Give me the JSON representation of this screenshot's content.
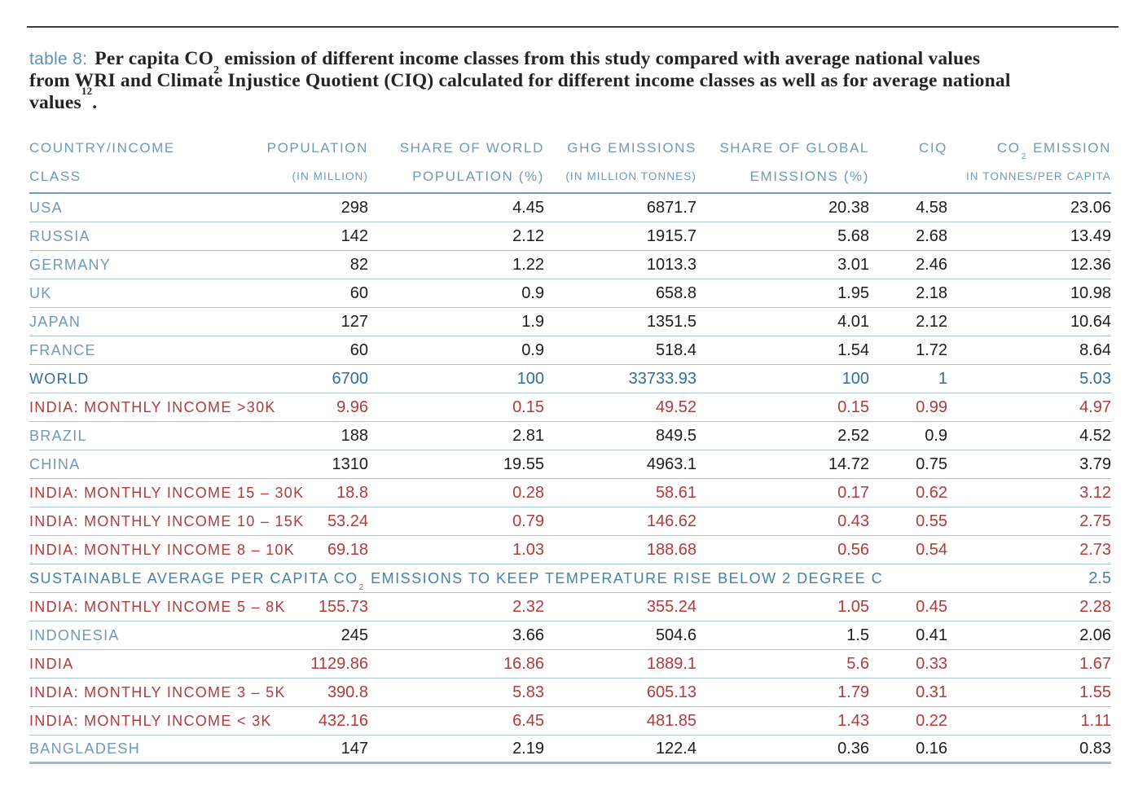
{
  "caption": {
    "label": "table 8:",
    "line1_before_sub": "Per capita CO",
    "line1_sub": "2",
    "line1_after_sub": " emission of different income classes from this study compared with average national values",
    "line2": "from WRI and Climate Injustice Quotient (CIQ) calculated for different income classes as well as for average national",
    "line3_word": "values",
    "line3_sup": "12",
    "line3_period": "."
  },
  "table": {
    "columns": [
      {
        "line1": "COUNTRY/INCOME",
        "line2": "CLASS"
      },
      {
        "line1": "POPULATION",
        "line2": "(IN MILLION)"
      },
      {
        "line1": "SHARE OF WORLD",
        "line2": "POPULATION (%)"
      },
      {
        "line1": "GHG EMISSIONS",
        "line2": "(IN MILLION TONNES)"
      },
      {
        "line1": "SHARE OF GLOBAL",
        "line2": "EMISSIONS (%)"
      },
      {
        "line1": "CIQ",
        "line2": ""
      },
      {
        "line1_before_sub": "CO",
        "line1_sub": "2",
        "line1_after_sub": " EMISSION",
        "line2": "IN TONNES/PER CAPITA"
      }
    ],
    "rows": [
      {
        "label": "USA",
        "values": [
          "298",
          "4.45",
          "6871.7",
          "20.38",
          "4.58",
          "23.06"
        ],
        "style": "country"
      },
      {
        "label": "RUSSIA",
        "values": [
          "142",
          "2.12",
          "1915.7",
          "5.68",
          "2.68",
          "13.49"
        ],
        "style": "country"
      },
      {
        "label": "GERMANY",
        "values": [
          "82",
          "1.22",
          "1013.3",
          "3.01",
          "2.46",
          "12.36"
        ],
        "style": "country"
      },
      {
        "label": "UK",
        "values": [
          "60",
          "0.9",
          "658.8",
          "1.95",
          "2.18",
          "10.98"
        ],
        "style": "country"
      },
      {
        "label": "JAPAN",
        "values": [
          "127",
          "1.9",
          "1351.5",
          "4.01",
          "2.12",
          "10.64"
        ],
        "style": "country"
      },
      {
        "label": "FRANCE",
        "values": [
          "60",
          "0.9",
          "518.4",
          "1.54",
          "1.72",
          "8.64"
        ],
        "style": "country"
      },
      {
        "label": "WORLD",
        "values": [
          "6700",
          "100",
          "33733.93",
          "100",
          "1",
          "5.03"
        ],
        "style": "world"
      },
      {
        "label": "INDIA: MONTHLY INCOME >30K",
        "values": [
          "9.96",
          "0.15",
          "49.52",
          "0.15",
          "0.99",
          "4.97"
        ],
        "style": "india"
      },
      {
        "label": "BRAZIL",
        "values": [
          "188",
          "2.81",
          "849.5",
          "2.52",
          "0.9",
          "4.52"
        ],
        "style": "country"
      },
      {
        "label": "CHINA",
        "values": [
          "1310",
          "19.55",
          "4963.1",
          "14.72",
          "0.75",
          "3.79"
        ],
        "style": "country"
      },
      {
        "label": "INDIA: MONTHLY INCOME 15 – 30K",
        "values": [
          "18.8",
          "0.28",
          "58.61",
          "0.17",
          "0.62",
          "3.12"
        ],
        "style": "india"
      },
      {
        "label": "INDIA: MONTHLY INCOME 10 – 15K",
        "values": [
          "53.24",
          "0.79",
          "146.62",
          "0.43",
          "0.55",
          "2.75"
        ],
        "style": "india"
      },
      {
        "label": "INDIA: MONTHLY INCOME 8 – 10K",
        "values": [
          "69.18",
          "1.03",
          "188.68",
          "0.56",
          "0.54",
          "2.73"
        ],
        "style": "india"
      },
      {
        "type": "banner",
        "text_before_sub": "SUSTAINABLE AVERAGE PER CAPITA CO",
        "sub": "2",
        "text_after_sub": " EMISSIONS TO KEEP TEMPERATURE RISE BELOW 2 DEGREE C",
        "value": "2.5",
        "style": "banner"
      },
      {
        "label": "INDIA: MONTHLY INCOME 5 – 8K",
        "values": [
          "155.73",
          "2.32",
          "355.24",
          "1.05",
          "0.45",
          "2.28"
        ],
        "style": "india"
      },
      {
        "label": "INDONESIA",
        "values": [
          "245",
          "3.66",
          "504.6",
          "1.5",
          "0.41",
          "2.06"
        ],
        "style": "country"
      },
      {
        "label": "INDIA",
        "values": [
          "1129.86",
          "16.86",
          "1889.1",
          "5.6",
          "0.33",
          "1.67"
        ],
        "style": "india"
      },
      {
        "label": "INDIA: MONTHLY INCOME 3 – 5K",
        "values": [
          "390.8",
          "5.83",
          "605.13",
          "1.79",
          "0.31",
          "1.55"
        ],
        "style": "india"
      },
      {
        "label": "INDIA: MONTHLY INCOME < 3K",
        "values": [
          "432.16",
          "6.45",
          "481.85",
          "1.43",
          "0.22",
          "1.11"
        ],
        "style": "india"
      },
      {
        "label": "BANGLADESH",
        "values": [
          "147",
          "2.19",
          "122.4",
          "0.36",
          "0.16",
          "0.83"
        ],
        "style": "country"
      }
    ]
  },
  "colors": {
    "accent_blue_light": "#7099b9",
    "accent_blue_dark": "#306d9d",
    "banner_blue": "#4680a9",
    "india_red": "#b23a3c",
    "text_dark": "#1d1d1d",
    "rule_dark": "#3d3d3d",
    "row_line": "#aac7d8",
    "header_line": "#6d9cbd",
    "bottom_line": "#9cbdd1",
    "caption_label_blue": "#5d92b6"
  }
}
